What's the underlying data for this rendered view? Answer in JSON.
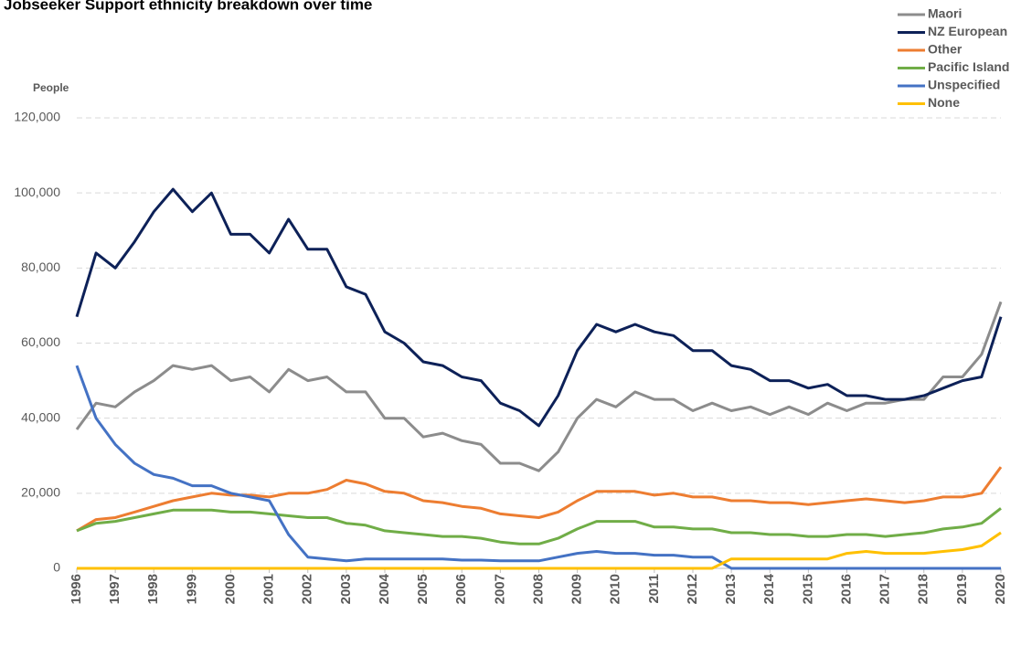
{
  "chart_data": {
    "type": "line",
    "title": "Jobseeker Support ethnicity breakdown over time",
    "y_label": "People",
    "xlim": [
      1996,
      2020
    ],
    "xticks": [
      1996,
      1997,
      1998,
      1999,
      2000,
      2001,
      2002,
      2003,
      2004,
      2005,
      2006,
      2007,
      2008,
      2009,
      2010,
      2011,
      2012,
      2013,
      2014,
      2015,
      2016,
      2017,
      2018,
      2019,
      2020
    ],
    "ylim": [
      0,
      120000
    ],
    "yticks": [
      0,
      {
        "value": 20000,
        "label": "20,000"
      },
      {
        "value": 40000,
        "label": "40,000"
      },
      {
        "value": 60000,
        "label": "60,000"
      },
      {
        "value": 80000,
        "label": "80,000"
      },
      {
        "value": 100000,
        "label": "100,000"
      },
      {
        "value": 120000,
        "label": "120,000"
      }
    ],
    "grid": true,
    "legend": "top-right",
    "x": [
      1996,
      1996.5,
      1997,
      1997.5,
      1998,
      1998.5,
      1999,
      1999.5,
      2000,
      2000.5,
      2001,
      2001.5,
      2002,
      2002.5,
      2003,
      2003.5,
      2004,
      2004.5,
      2005,
      2005.5,
      2006,
      2006.5,
      2007,
      2007.5,
      2008,
      2008.5,
      2009,
      2009.5,
      2010,
      2010.5,
      2011,
      2011.5,
      2012,
      2012.5,
      2013,
      2013.5,
      2014,
      2014.5,
      2015,
      2015.5,
      2016,
      2016.5,
      2017,
      2017.5,
      2018,
      2018.5,
      2019,
      2019.5,
      2020
    ],
    "series": [
      {
        "name": "Maori",
        "color": "#8c8c8c",
        "values": [
          37000,
          44000,
          43000,
          47000,
          50000,
          54000,
          53000,
          54000,
          50000,
          51000,
          47000,
          53000,
          50000,
          51000,
          47000,
          47000,
          40000,
          40000,
          35000,
          36000,
          34000,
          33000,
          28000,
          28000,
          26000,
          31000,
          40000,
          45000,
          43000,
          47000,
          45000,
          45000,
          42000,
          44000,
          42000,
          43000,
          41000,
          43000,
          41000,
          44000,
          42000,
          44000,
          44000,
          45000,
          45000,
          51000,
          51000,
          57000,
          71000
        ]
      },
      {
        "name": "NZ European",
        "color": "#0d2158",
        "values": [
          67000,
          84000,
          80000,
          87000,
          95000,
          101000,
          95000,
          100000,
          89000,
          89000,
          84000,
          93000,
          85000,
          85000,
          75000,
          73000,
          63000,
          60000,
          55000,
          54000,
          51000,
          50000,
          44000,
          42000,
          38000,
          46000,
          58000,
          65000,
          63000,
          65000,
          63000,
          62000,
          58000,
          58000,
          54000,
          53000,
          50000,
          50000,
          48000,
          49000,
          46000,
          46000,
          45000,
          45000,
          46000,
          48000,
          50000,
          51000,
          67000
        ]
      },
      {
        "name": "Other",
        "color": "#ed7d31",
        "values": [
          10000,
          13000,
          13500,
          15000,
          16500,
          18000,
          19000,
          20000,
          19500,
          19500,
          19000,
          20000,
          20000,
          21000,
          23500,
          22500,
          20500,
          20000,
          18000,
          17500,
          16500,
          16000,
          14500,
          14000,
          13500,
          15000,
          18000,
          20500,
          20500,
          20500,
          19500,
          20000,
          19000,
          19000,
          18000,
          18000,
          17500,
          17500,
          17000,
          17500,
          18000,
          18500,
          18000,
          17500,
          18000,
          19000,
          19000,
          20000,
          27000
        ]
      },
      {
        "name": "Pacific Island",
        "color": "#70ad47",
        "values": [
          10000,
          12000,
          12500,
          13500,
          14500,
          15500,
          15500,
          15500,
          15000,
          15000,
          14500,
          14000,
          13500,
          13500,
          12000,
          11500,
          10000,
          9500,
          9000,
          8500,
          8500,
          8000,
          7000,
          6500,
          6500,
          8000,
          10500,
          12500,
          12500,
          12500,
          11000,
          11000,
          10500,
          10500,
          9500,
          9500,
          9000,
          9000,
          8500,
          8500,
          9000,
          9000,
          8500,
          9000,
          9500,
          10500,
          11000,
          12000,
          16000
        ]
      },
      {
        "name": "Unspecified",
        "color": "#4472c4",
        "values": [
          54000,
          40000,
          33000,
          28000,
          25000,
          24000,
          22000,
          22000,
          20000,
          19000,
          18000,
          9000,
          3000,
          2500,
          2000,
          2500,
          2500,
          2500,
          2500,
          2500,
          2200,
          2200,
          2000,
          2000,
          2000,
          3000,
          4000,
          4500,
          4000,
          4000,
          3500,
          3500,
          3000,
          3000,
          0,
          0,
          0,
          0,
          0,
          0,
          0,
          0,
          0,
          0,
          0,
          0,
          0,
          0,
          0
        ]
      },
      {
        "name": "None",
        "color": "#ffc000",
        "values": [
          0,
          0,
          0,
          0,
          0,
          0,
          0,
          0,
          0,
          0,
          0,
          0,
          0,
          0,
          0,
          0,
          0,
          0,
          0,
          0,
          0,
          0,
          0,
          0,
          0,
          0,
          0,
          0,
          0,
          0,
          0,
          0,
          0,
          0,
          2500,
          2500,
          2500,
          2500,
          2500,
          2500,
          4000,
          4500,
          4000,
          4000,
          4000,
          4500,
          5000,
          6000,
          9500
        ]
      }
    ]
  }
}
